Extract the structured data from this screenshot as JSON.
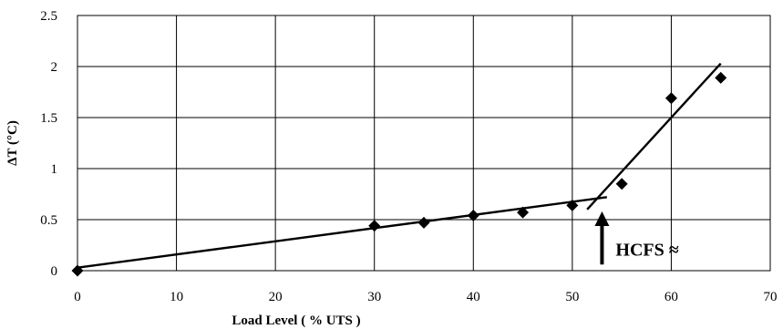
{
  "chart_data": {
    "type": "scatter",
    "xlabel": "Load Level ( % UTS )",
    "ylabel": "ΔT (°C)",
    "xlim": [
      0,
      70
    ],
    "ylim": [
      0,
      2.5
    ],
    "xticks": [
      0,
      10,
      20,
      30,
      40,
      50,
      60,
      70
    ],
    "yticks": [
      0,
      0.5,
      1,
      1.5,
      2,
      2.5
    ],
    "x_tick_labels": [
      "0",
      "10",
      "20",
      "30",
      "40",
      "50",
      "60",
      "70"
    ],
    "y_tick_labels": [
      "0",
      "0.5",
      "1",
      "1.5",
      "2",
      "2.5"
    ],
    "grid": true,
    "points": [
      {
        "x": 0,
        "y": 0
      },
      {
        "x": 30,
        "y": 0.44
      },
      {
        "x": 35,
        "y": 0.47
      },
      {
        "x": 40,
        "y": 0.54
      },
      {
        "x": 45,
        "y": 0.57
      },
      {
        "x": 50,
        "y": 0.64
      },
      {
        "x": 55,
        "y": 0.85
      },
      {
        "x": 60,
        "y": 1.69
      },
      {
        "x": 65,
        "y": 1.89
      }
    ],
    "fit_lines": [
      {
        "x": [
          0,
          53.5
        ],
        "y": [
          0.03,
          0.72
        ]
      },
      {
        "x": [
          51.5,
          65
        ],
        "y": [
          0.6,
          2.03
        ]
      }
    ],
    "annotation": {
      "text": "HCFS ≈",
      "arrow_x": 53,
      "arrow_y_from": 0.06,
      "arrow_y_to": 0.58
    }
  }
}
